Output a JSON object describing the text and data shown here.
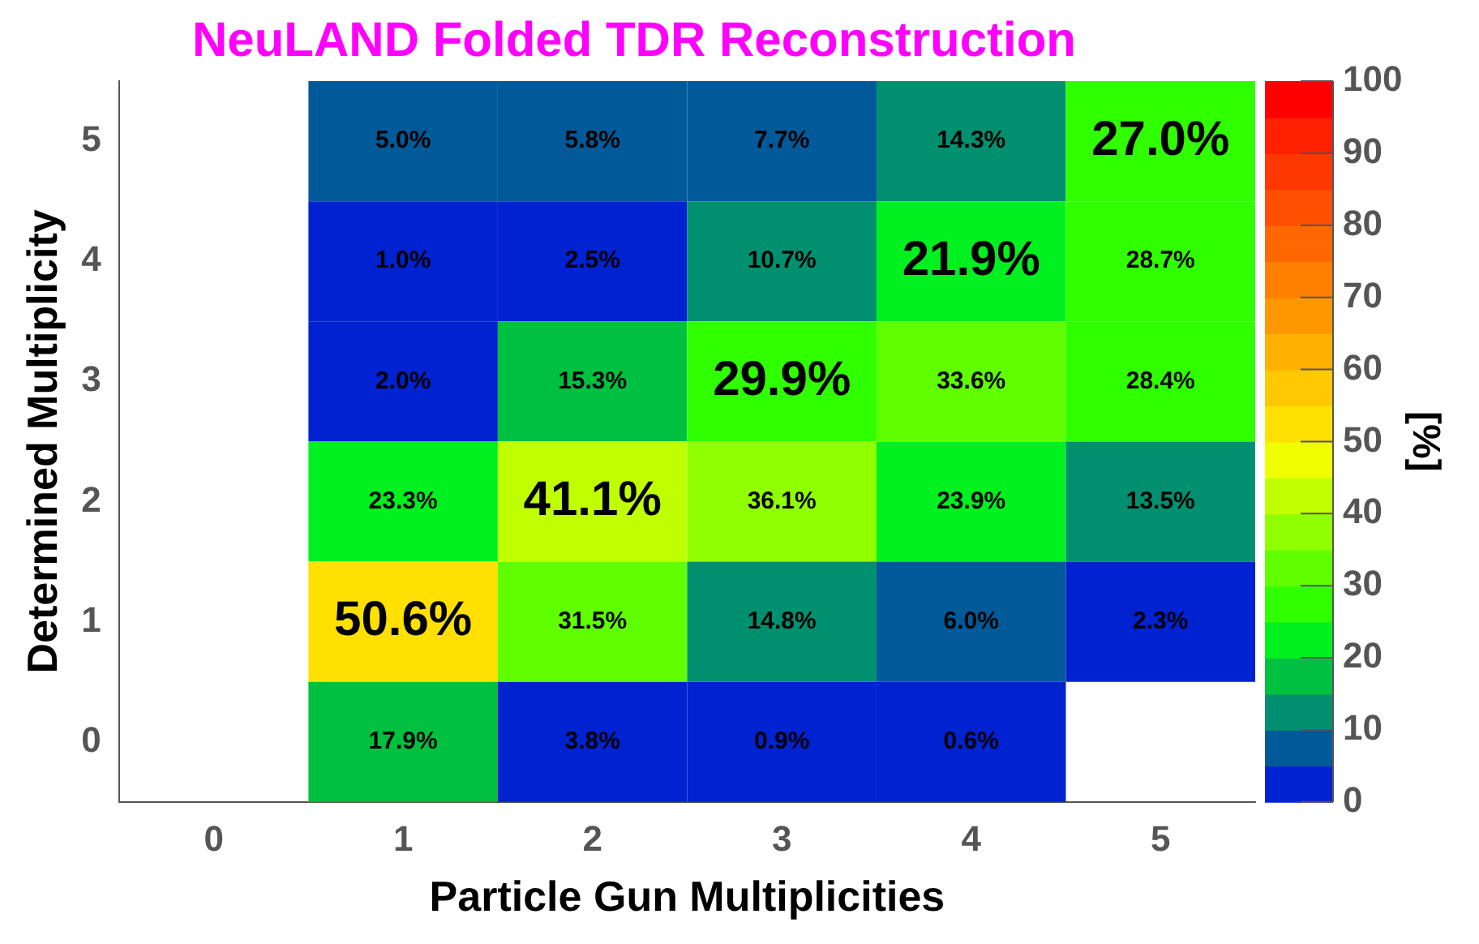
{
  "chart_data": {
    "type": "heatmap",
    "title": "NeuLAND Folded TDR Reconstruction",
    "xlabel": "Particle Gun Multiplicities",
    "ylabel": "Determined Multiplicity",
    "clabel": "[%]",
    "categories": [
      "0",
      "1",
      "2",
      "3",
      "4",
      "5"
    ],
    "y_categories": [
      "5",
      "4",
      "3",
      "2",
      "1",
      "0"
    ],
    "cells": [
      [
        null,
        5.0,
        5.8,
        7.7,
        14.3,
        27.0
      ],
      [
        null,
        1.0,
        2.5,
        10.7,
        21.9,
        28.7
      ],
      [
        null,
        2.0,
        15.3,
        29.9,
        33.6,
        28.4
      ],
      [
        null,
        23.3,
        41.1,
        36.1,
        23.9,
        13.5
      ],
      [
        null,
        50.6,
        31.5,
        14.8,
        6.0,
        2.3
      ],
      [
        null,
        17.9,
        3.8,
        0.9,
        0.6,
        null
      ]
    ],
    "cell_labels": [
      [
        null,
        "5.0%",
        "5.8%",
        "7.7%",
        "14.3%",
        "27.0%"
      ],
      [
        null,
        "1.0%",
        "2.5%",
        "10.7%",
        "21.9%",
        "28.7%"
      ],
      [
        null,
        "2.0%",
        "15.3%",
        "29.9%",
        "33.6%",
        "28.4%"
      ],
      [
        null,
        "23.3%",
        "41.1%",
        "36.1%",
        "23.9%",
        "13.5%"
      ],
      [
        null,
        "50.6%",
        "31.5%",
        "14.8%",
        "6.0%",
        "2.3%"
      ],
      [
        null,
        "17.9%",
        "3.8%",
        "0.9%",
        "0.6%",
        null
      ]
    ],
    "clim": [
      0,
      100
    ],
    "cticks": [
      0,
      10,
      20,
      30,
      40,
      50,
      60,
      70,
      80,
      90,
      100
    ]
  }
}
